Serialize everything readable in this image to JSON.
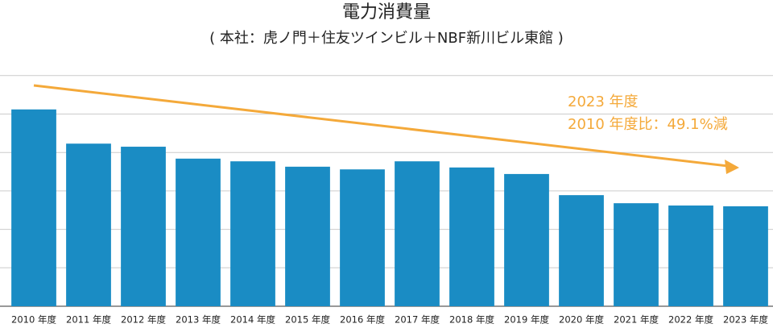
{
  "chart_data": {
    "type": "bar",
    "title": "電力消費量",
    "subtitle": "( 本社：虎ノ門＋住友ツインビル＋NBF新川ビル東館 )",
    "categories": [
      "2010 年度",
      "2011 年度",
      "2012 年度",
      "2013 年度",
      "2014 年度",
      "2015 年度",
      "2016 年度",
      "2017 年度",
      "2018 年度",
      "2019 年度",
      "2020 年度",
      "2021 年度",
      "2022 年度",
      "2023 年度"
    ],
    "values": [
      5.12,
      4.23,
      4.15,
      3.84,
      3.77,
      3.63,
      3.56,
      3.77,
      3.61,
      3.44,
      2.89,
      2.68,
      2.62,
      2.6
    ],
    "color": "#1a8cc4",
    "ylim": [
      0,
      6
    ],
    "grid": true,
    "annotations": [
      "2023 年度",
      "2010 年度比：49.1%減"
    ],
    "arrow_color": "#f4a93a"
  }
}
